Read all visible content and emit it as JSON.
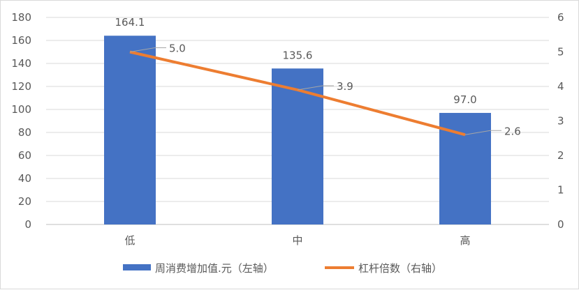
{
  "chart_data": {
    "type": "bar+line",
    "categories": [
      "低",
      "中",
      "高"
    ],
    "series": [
      {
        "name": "周消费增加值.元（左轴）",
        "type": "bar",
        "axis": "left",
        "values": [
          164.1,
          135.6,
          97.0
        ],
        "labels": [
          "164.1",
          "135.6",
          "97.0"
        ],
        "color": "#4472C4"
      },
      {
        "name": "杠杆倍数（右轴）",
        "type": "line",
        "axis": "right",
        "values": [
          5.0,
          3.9,
          2.6
        ],
        "labels": [
          "5.0",
          "3.9",
          "2.6"
        ],
        "color": "#ED7D31"
      }
    ],
    "y_left": {
      "range": [
        0,
        180
      ],
      "ticks": [
        "0",
        "20",
        "40",
        "60",
        "80",
        "100",
        "120",
        "140",
        "160",
        "180"
      ]
    },
    "y_right": {
      "range": [
        0,
        6
      ],
      "ticks": [
        "0",
        "1",
        "2",
        "3",
        "4",
        "5",
        "6"
      ]
    },
    "grid": true,
    "legend_position": "bottom"
  }
}
